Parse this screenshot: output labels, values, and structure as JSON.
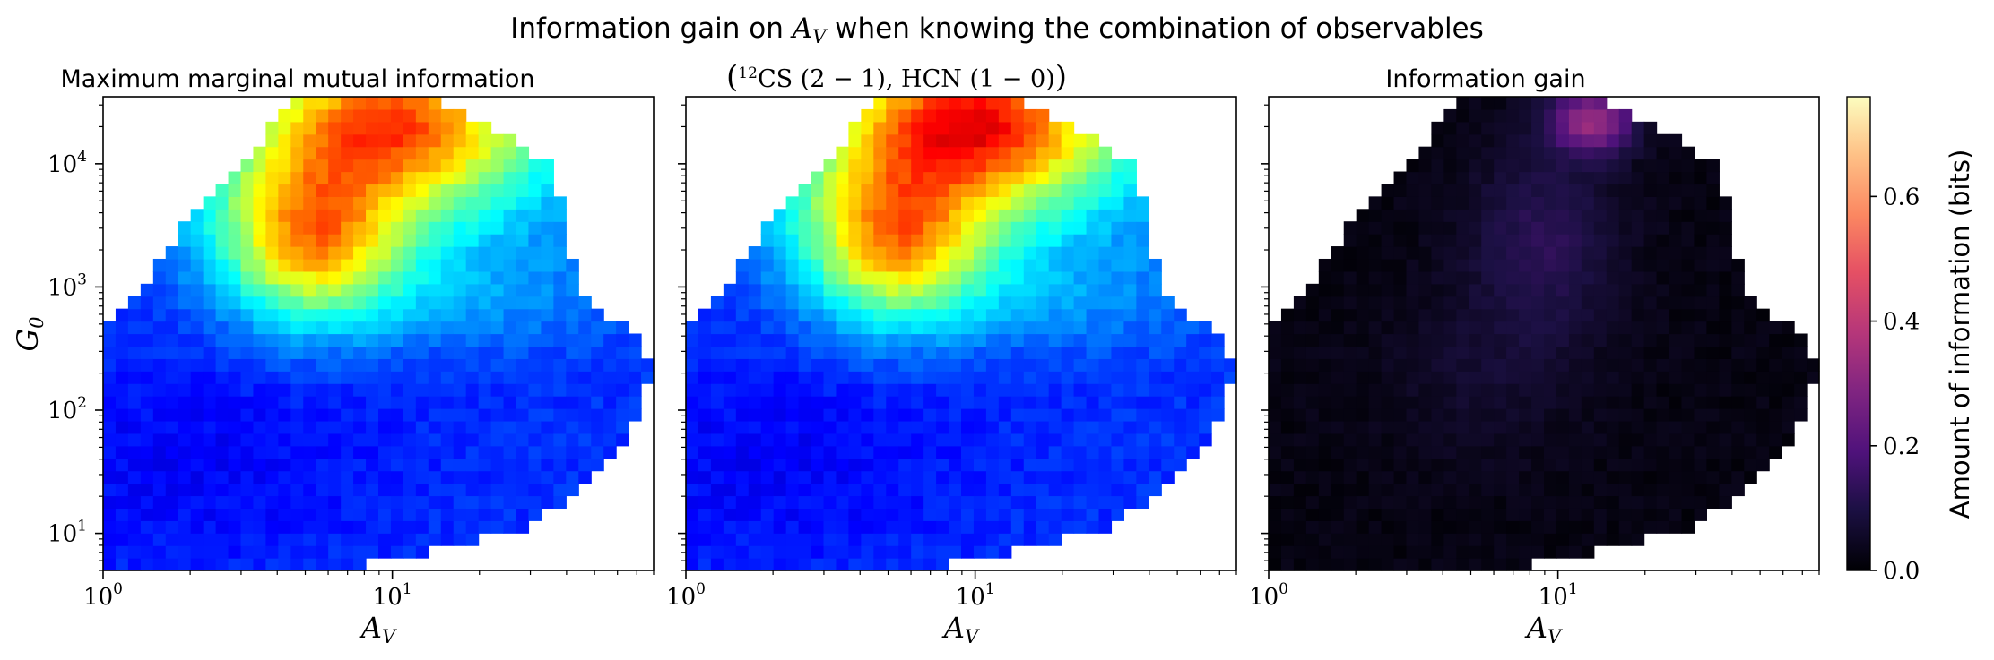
{
  "figure": {
    "title": "Information gain on A_V when knowing the combination of observables"
  },
  "chart_data": [
    {
      "type": "heatmap",
      "title": "Maximum marginal mutual information",
      "xlabel": "A_V",
      "ylabel": "G_0",
      "x_scale": "log",
      "y_scale": "log",
      "xlim": [
        1,
        80
      ],
      "ylim": [
        5,
        35000
      ],
      "x_ticks": [
        "10^0",
        "10^1"
      ],
      "y_ticks": [
        "10^1",
        "10^2",
        "10^3",
        "10^4"
      ],
      "colormap": "jet",
      "value_range_bits": [
        0,
        0.7
      ]
    },
    {
      "type": "heatmap",
      "title": "(12CS (2-1), HCN (1-0))",
      "xlabel": "A_V",
      "ylabel": "",
      "x_scale": "log",
      "y_scale": "log",
      "xlim": [
        1,
        80
      ],
      "ylim": [
        5,
        35000
      ],
      "x_ticks": [
        "10^0",
        "10^1"
      ],
      "colormap": "jet",
      "value_range_bits": [
        0,
        0.7
      ]
    },
    {
      "type": "heatmap",
      "title": "Information gain",
      "xlabel": "A_V",
      "ylabel": "",
      "x_scale": "log",
      "y_scale": "log",
      "xlim": [
        1,
        80
      ],
      "ylim": [
        5,
        35000
      ],
      "x_ticks": [
        "10^0",
        "10^1"
      ],
      "colormap": "magma",
      "value_range_bits": [
        0,
        0.76
      ],
      "hotspot": {
        "A_V": 13,
        "G_0": 20000,
        "bits": 0.25
      }
    }
  ],
  "colorbar": {
    "label": "Amount of information (bits)",
    "ticks": [
      "0.0",
      "0.2",
      "0.4",
      "0.6"
    ],
    "range": [
      0,
      0.76
    ],
    "colormap": "magma"
  }
}
